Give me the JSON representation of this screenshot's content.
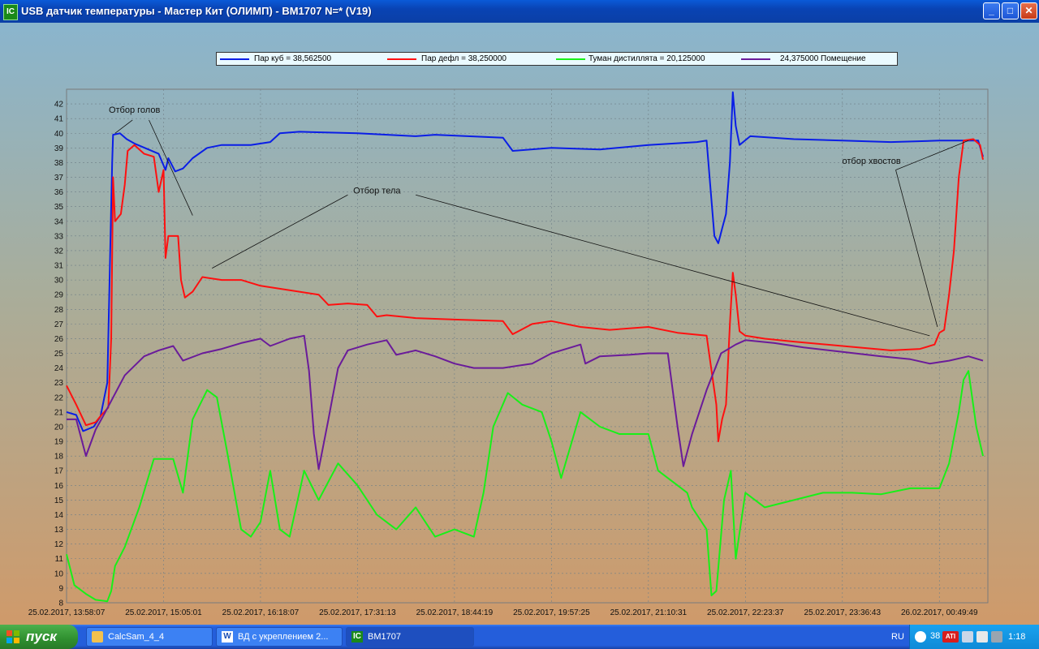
{
  "window": {
    "title": "USB датчик температуры - Мастер Кит (ОЛИМП) - BM1707 N=* (V19)",
    "icon_label": "IC"
  },
  "legend": [
    {
      "label": "Пар куб = 38,562500",
      "color": "#0a1ee6"
    },
    {
      "label": "Пар дефл = 38,250000",
      "color": "#ff1010"
    },
    {
      "label": "Туман дистиллята = 20,125000",
      "color": "#18f018"
    },
    {
      "label": "24,375000  Помещение",
      "color": "#6a1b9a"
    }
  ],
  "chart_data": {
    "type": "line",
    "ylim": [
      8,
      43
    ],
    "yticks": [
      8,
      9,
      10,
      11,
      12,
      13,
      14,
      15,
      16,
      17,
      18,
      19,
      20,
      21,
      22,
      23,
      24,
      25,
      26,
      27,
      28,
      29,
      30,
      31,
      32,
      33,
      34,
      35,
      36,
      37,
      38,
      39,
      40,
      41,
      42
    ],
    "xticklabels": [
      "25.02.2017, 13:58:07",
      "25.02.2017, 15:05:01",
      "25.02.2017, 16:18:07",
      "25.02.2017, 17:31:13",
      "25.02.2017, 18:44:19",
      "25.02.2017, 19:57:25",
      "25.02.2017, 21:10:31",
      "25.02.2017, 22:23:37",
      "25.02.2017, 23:36:43",
      "26.02.2017, 00:49:49"
    ],
    "annotations": [
      {
        "text": "Отбор голов",
        "x": 0.7,
        "y": 41.4
      },
      {
        "text": "Отбор тела",
        "x": 3.2,
        "y": 35.9
      },
      {
        "text": "отбор хвостов",
        "x": 8.3,
        "y": 37.9
      }
    ],
    "series": [
      {
        "name": "Пар куб",
        "color": "#0a1ee6",
        "points": [
          [
            0,
            21.0
          ],
          [
            0.1,
            20.8
          ],
          [
            0.17,
            19.7
          ],
          [
            0.28,
            20.0
          ],
          [
            0.35,
            20.7
          ],
          [
            0.42,
            23
          ],
          [
            0.45,
            32
          ],
          [
            0.47,
            38
          ],
          [
            0.48,
            39.9
          ],
          [
            0.55,
            40.0
          ],
          [
            0.62,
            39.6
          ],
          [
            0.7,
            39.3
          ],
          [
            0.95,
            38.6
          ],
          [
            1.02,
            37.5
          ],
          [
            1.05,
            38.3
          ],
          [
            1.12,
            37.4
          ],
          [
            1.2,
            37.6
          ],
          [
            1.3,
            38.3
          ],
          [
            1.45,
            39
          ],
          [
            1.6,
            39.2
          ],
          [
            1.9,
            39.2
          ],
          [
            2.1,
            39.4
          ],
          [
            2.2,
            40.0
          ],
          [
            2.4,
            40.1
          ],
          [
            3.0,
            40.0
          ],
          [
            3.6,
            39.8
          ],
          [
            3.8,
            39.9
          ],
          [
            4.5,
            39.7
          ],
          [
            4.6,
            38.8
          ],
          [
            5.0,
            39.0
          ],
          [
            5.5,
            38.9
          ],
          [
            6.0,
            39.2
          ],
          [
            6.5,
            39.4
          ],
          [
            6.6,
            39.5
          ],
          [
            6.68,
            33.0
          ],
          [
            6.72,
            32.5
          ],
          [
            6.76,
            33.5
          ],
          [
            6.8,
            34.5
          ],
          [
            6.84,
            38.0
          ],
          [
            6.87,
            42.8
          ],
          [
            6.9,
            40.5
          ],
          [
            6.94,
            39.2
          ],
          [
            7.05,
            39.8
          ],
          [
            7.5,
            39.6
          ],
          [
            8.0,
            39.5
          ],
          [
            8.5,
            39.4
          ],
          [
            9.0,
            39.5
          ],
          [
            9.2,
            39.5
          ],
          [
            9.4,
            39.5
          ],
          [
            9.45,
            38.4
          ]
        ]
      },
      {
        "name": "Пар дефл",
        "color": "#ff1010",
        "points": [
          [
            0,
            22.8
          ],
          [
            0.1,
            21.5
          ],
          [
            0.2,
            20.1
          ],
          [
            0.3,
            20.3
          ],
          [
            0.36,
            20.8
          ],
          [
            0.43,
            21.3
          ],
          [
            0.46,
            26
          ],
          [
            0.48,
            37
          ],
          [
            0.5,
            34
          ],
          [
            0.56,
            34.5
          ],
          [
            0.6,
            36.5
          ],
          [
            0.63,
            38.8
          ],
          [
            0.7,
            39.2
          ],
          [
            0.8,
            38.6
          ],
          [
            0.9,
            38.4
          ],
          [
            0.95,
            36
          ],
          [
            1.0,
            37.5
          ],
          [
            1.02,
            31.5
          ],
          [
            1.05,
            33
          ],
          [
            1.15,
            33
          ],
          [
            1.18,
            30
          ],
          [
            1.22,
            28.8
          ],
          [
            1.3,
            29.2
          ],
          [
            1.4,
            30.2
          ],
          [
            1.6,
            30.0
          ],
          [
            1.8,
            30.0
          ],
          [
            2.0,
            29.6
          ],
          [
            2.3,
            29.3
          ],
          [
            2.6,
            29.0
          ],
          [
            2.7,
            28.3
          ],
          [
            2.9,
            28.4
          ],
          [
            3.1,
            28.3
          ],
          [
            3.2,
            27.5
          ],
          [
            3.3,
            27.6
          ],
          [
            3.6,
            27.4
          ],
          [
            4.0,
            27.3
          ],
          [
            4.5,
            27.2
          ],
          [
            4.6,
            26.3
          ],
          [
            4.8,
            27.0
          ],
          [
            5.0,
            27.2
          ],
          [
            5.3,
            26.8
          ],
          [
            5.6,
            26.6
          ],
          [
            6.0,
            26.8
          ],
          [
            6.3,
            26.4
          ],
          [
            6.6,
            26.2
          ],
          [
            6.7,
            21.5
          ],
          [
            6.72,
            19
          ],
          [
            6.76,
            20.5
          ],
          [
            6.8,
            21.5
          ],
          [
            6.84,
            27
          ],
          [
            6.87,
            30.5
          ],
          [
            6.9,
            29
          ],
          [
            6.94,
            26.5
          ],
          [
            7.0,
            26.2
          ],
          [
            7.2,
            26.0
          ],
          [
            7.5,
            25.8
          ],
          [
            8.0,
            25.5
          ],
          [
            8.5,
            25.2
          ],
          [
            8.8,
            25.3
          ],
          [
            8.95,
            25.6
          ],
          [
            9.0,
            26.4
          ],
          [
            9.05,
            26.6
          ],
          [
            9.1,
            29
          ],
          [
            9.15,
            32
          ],
          [
            9.2,
            37
          ],
          [
            9.25,
            39.5
          ],
          [
            9.35,
            39.6
          ],
          [
            9.42,
            39.2
          ],
          [
            9.45,
            38.2
          ]
        ]
      },
      {
        "name": "Туман дистиллята",
        "color": "#18f018",
        "points": [
          [
            0,
            11.3
          ],
          [
            0.08,
            9.2
          ],
          [
            0.2,
            8.6
          ],
          [
            0.3,
            8.2
          ],
          [
            0.42,
            8.1
          ],
          [
            0.46,
            8.8
          ],
          [
            0.5,
            10.5
          ],
          [
            0.6,
            11.8
          ],
          [
            0.75,
            14.5
          ],
          [
            0.9,
            17.8
          ],
          [
            1.1,
            17.8
          ],
          [
            1.2,
            15.5
          ],
          [
            1.3,
            20.5
          ],
          [
            1.45,
            22.5
          ],
          [
            1.55,
            22.0
          ],
          [
            1.65,
            18.5
          ],
          [
            1.8,
            13
          ],
          [
            1.9,
            12.5
          ],
          [
            2.0,
            13.5
          ],
          [
            2.1,
            17
          ],
          [
            2.2,
            13
          ],
          [
            2.3,
            12.5
          ],
          [
            2.45,
            17
          ],
          [
            2.6,
            15
          ],
          [
            2.8,
            17.5
          ],
          [
            3.0,
            16
          ],
          [
            3.2,
            14
          ],
          [
            3.4,
            13
          ],
          [
            3.6,
            14.5
          ],
          [
            3.8,
            12.5
          ],
          [
            4.0,
            13
          ],
          [
            4.2,
            12.5
          ],
          [
            4.3,
            15.5
          ],
          [
            4.4,
            20
          ],
          [
            4.55,
            22.3
          ],
          [
            4.7,
            21.5
          ],
          [
            4.9,
            21
          ],
          [
            5.0,
            19
          ],
          [
            5.1,
            16.5
          ],
          [
            5.3,
            21
          ],
          [
            5.5,
            20
          ],
          [
            5.7,
            19.5
          ],
          [
            6.0,
            19.5
          ],
          [
            6.1,
            17
          ],
          [
            6.3,
            16
          ],
          [
            6.4,
            15.5
          ],
          [
            6.45,
            14.5
          ],
          [
            6.6,
            13
          ],
          [
            6.65,
            8.5
          ],
          [
            6.7,
            8.8
          ],
          [
            6.78,
            15
          ],
          [
            6.85,
            17
          ],
          [
            6.9,
            11
          ],
          [
            7.0,
            15.5
          ],
          [
            7.2,
            14.5
          ],
          [
            7.5,
            15
          ],
          [
            7.8,
            15.5
          ],
          [
            8.1,
            15.5
          ],
          [
            8.4,
            15.4
          ],
          [
            8.7,
            15.8
          ],
          [
            9.0,
            15.8
          ],
          [
            9.1,
            17.5
          ],
          [
            9.2,
            21
          ],
          [
            9.25,
            23.2
          ],
          [
            9.3,
            23.8
          ],
          [
            9.38,
            20
          ],
          [
            9.45,
            18
          ]
        ]
      },
      {
        "name": "Помещение",
        "color": "#6a1b9a",
        "points": [
          [
            0,
            20.5
          ],
          [
            0.1,
            20.5
          ],
          [
            0.2,
            18
          ],
          [
            0.3,
            19.8
          ],
          [
            0.4,
            21
          ],
          [
            0.6,
            23.5
          ],
          [
            0.8,
            24.8
          ],
          [
            0.95,
            25.2
          ],
          [
            1.1,
            25.5
          ],
          [
            1.2,
            24.5
          ],
          [
            1.4,
            25.0
          ],
          [
            1.6,
            25.3
          ],
          [
            1.8,
            25.7
          ],
          [
            2.0,
            26.0
          ],
          [
            2.1,
            25.5
          ],
          [
            2.3,
            26.0
          ],
          [
            2.45,
            26.2
          ],
          [
            2.5,
            23.8
          ],
          [
            2.55,
            19.5
          ],
          [
            2.6,
            17.1
          ],
          [
            2.7,
            20.5
          ],
          [
            2.8,
            24.0
          ],
          [
            2.9,
            25.2
          ],
          [
            3.1,
            25.6
          ],
          [
            3.3,
            25.9
          ],
          [
            3.4,
            24.9
          ],
          [
            3.6,
            25.2
          ],
          [
            3.8,
            24.8
          ],
          [
            4.0,
            24.3
          ],
          [
            4.2,
            24.0
          ],
          [
            4.5,
            24.0
          ],
          [
            4.8,
            24.3
          ],
          [
            5.0,
            25.0
          ],
          [
            5.2,
            25.4
          ],
          [
            5.3,
            25.6
          ],
          [
            5.35,
            24.3
          ],
          [
            5.5,
            24.8
          ],
          [
            5.8,
            24.9
          ],
          [
            6.0,
            25.0
          ],
          [
            6.2,
            25.0
          ],
          [
            6.3,
            20
          ],
          [
            6.36,
            17.3
          ],
          [
            6.45,
            19.5
          ],
          [
            6.6,
            22.5
          ],
          [
            6.75,
            25.0
          ],
          [
            6.9,
            25.6
          ],
          [
            7.0,
            25.9
          ],
          [
            7.3,
            25.7
          ],
          [
            7.6,
            25.4
          ],
          [
            8.0,
            25.1
          ],
          [
            8.4,
            24.8
          ],
          [
            8.7,
            24.6
          ],
          [
            8.9,
            24.3
          ],
          [
            9.1,
            24.5
          ],
          [
            9.3,
            24.8
          ],
          [
            9.45,
            24.5
          ]
        ]
      }
    ]
  },
  "taskbar": {
    "start": "пуск",
    "tasks": [
      {
        "label": "CalcSam_4_4",
        "icon": "folder-icon"
      },
      {
        "label": "ВД с укреплением 2...",
        "icon": "word-icon"
      },
      {
        "label": "BM1707",
        "icon": "app-icon"
      }
    ],
    "lang": "RU",
    "tray_num": "38",
    "tray_badge": "ATI",
    "clock": "1:18"
  }
}
